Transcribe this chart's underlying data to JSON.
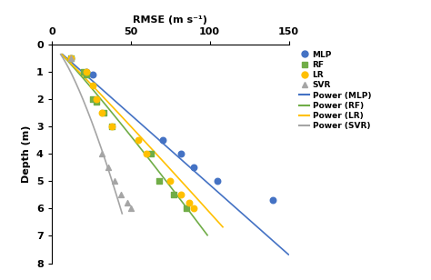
{
  "xlabel": "RMSE (m s⁻¹)",
  "ylabel": "Depth (m)",
  "xlim": [
    0,
    150
  ],
  "ylim": [
    8,
    0
  ],
  "xticks": [
    0,
    50,
    100,
    150
  ],
  "yticks": [
    0,
    1,
    2,
    3,
    4,
    5,
    6,
    7,
    8
  ],
  "mlp_data": {
    "x": [
      12,
      22,
      26,
      70,
      82,
      90,
      105,
      140
    ],
    "y": [
      0.5,
      1.0,
      1.1,
      3.5,
      4.0,
      4.5,
      5.0,
      5.7
    ],
    "color": "#4472C4",
    "marker": "o",
    "label": "MLP",
    "size": 22
  },
  "rf_data": {
    "x": [
      12,
      20,
      22,
      26,
      28,
      33,
      38,
      63,
      68,
      77,
      85
    ],
    "y": [
      0.5,
      1.0,
      1.1,
      2.0,
      2.1,
      2.5,
      3.0,
      4.0,
      5.0,
      5.5,
      6.0
    ],
    "color": "#70AD47",
    "marker": "s",
    "label": "RF",
    "size": 18
  },
  "lr_data": {
    "x": [
      12,
      22,
      26,
      28,
      32,
      38,
      55,
      60,
      75,
      82,
      87,
      90
    ],
    "y": [
      0.5,
      1.0,
      1.5,
      2.0,
      2.5,
      3.0,
      3.5,
      4.0,
      5.0,
      5.5,
      5.8,
      6.0
    ],
    "color": "#FFC000",
    "marker": "o",
    "label": "LR",
    "size": 22
  },
  "svr_data": {
    "x": [
      12,
      32,
      36,
      40,
      44,
      48,
      50
    ],
    "y": [
      0.5,
      4.0,
      4.5,
      5.0,
      5.5,
      5.8,
      6.0
    ],
    "color": "#A5A5A5",
    "marker": "^",
    "label": "SVR",
    "size": 18
  },
  "power_mlp": {
    "a": 19.5,
    "b": 1.0,
    "depth_end": 7.7,
    "color": "#4472C4",
    "label": "Power (MLP)"
  },
  "power_rf": {
    "a": 16.5,
    "b": 0.92,
    "depth_end": 7.0,
    "color": "#70AD47",
    "label": "Power (RF)"
  },
  "power_lr": {
    "a": 17.5,
    "b": 0.96,
    "depth_end": 6.7,
    "color": "#FFC000",
    "label": "Power (LR)"
  },
  "power_svr": {
    "a": 12.0,
    "b": 0.72,
    "depth_end": 6.2,
    "color": "#A5A5A5",
    "label": "Power (SVR)"
  },
  "bg_color": "#FFFFFF"
}
